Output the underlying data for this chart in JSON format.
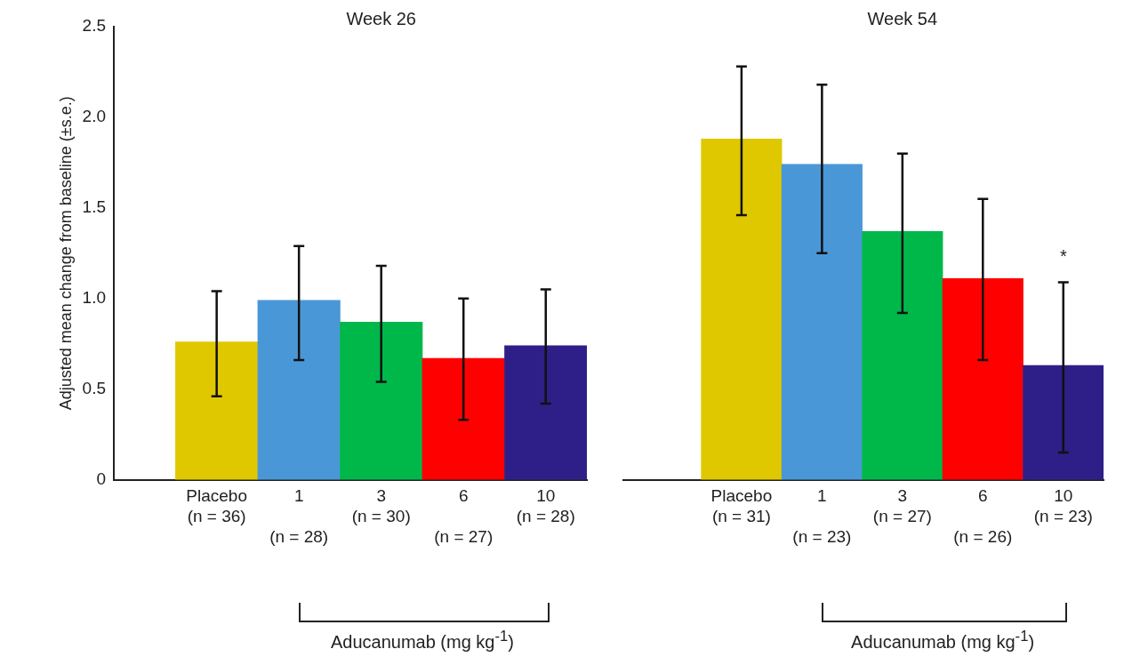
{
  "chart_data": [
    {
      "type": "bar",
      "title": "Week 26",
      "ylabel": "Adjusted mean change from baseline (±s.e.)",
      "xlabel": "Aducanumab (mg kg$^{-1}$)",
      "categories": [
        "Placebo\n(n = 36)",
        "1\n(n = 28)",
        "3\n(n = 30)",
        "6\n(n = 27)",
        "10\n(n = 28)"
      ],
      "values": [
        0.76,
        0.99,
        0.87,
        0.67,
        0.74
      ],
      "errors": [
        [
          0.46,
          1.04
        ],
        [
          0.66,
          1.29
        ],
        [
          0.54,
          1.18
        ],
        [
          0.33,
          1.0
        ],
        [
          0.42,
          1.05
        ]
      ],
      "colors": [
        "#e0c800",
        "#4a97d8",
        "#00b84a",
        "#ff0000",
        "#2e1f88"
      ],
      "ylim": [
        0,
        2.5
      ],
      "yticks": [
        {
          "value": 0,
          "label": "0"
        },
        {
          "value": 0.5,
          "label": "0.5"
        },
        {
          "value": 1,
          "label": "1.0"
        },
        {
          "value": 1.5,
          "label": "1.5"
        },
        {
          "value": 2,
          "label": "2.0"
        },
        {
          "value": 2.5,
          "label": "2.5"
        }
      ],
      "grid": false,
      "legend": false
    },
    {
      "type": "bar",
      "title": "Week 54",
      "xlabel": "Aducanumab (mg kg$^{-1}$)",
      "categories": [
        "Placebo\n(n = 31)",
        "1\n(n = 23)",
        "3\n(n = 27)",
        "6\n(n = 26)",
        "10\n(n = 23)"
      ],
      "values": [
        1.88,
        1.74,
        1.37,
        1.11,
        0.63
      ],
      "errors": [
        [
          1.46,
          2.28
        ],
        [
          1.25,
          2.18
        ],
        [
          0.92,
          1.8
        ],
        [
          0.66,
          1.55
        ],
        [
          0.15,
          1.09
        ]
      ],
      "colors": [
        "#e0c800",
        "#4a97d8",
        "#00b84a",
        "#ff0000",
        "#2e1f88"
      ],
      "ylim": [
        0,
        2.5
      ],
      "tick_labels": "x",
      "annotations": [
        "*"
      ],
      "grid": false,
      "legend": false
    }
  ]
}
